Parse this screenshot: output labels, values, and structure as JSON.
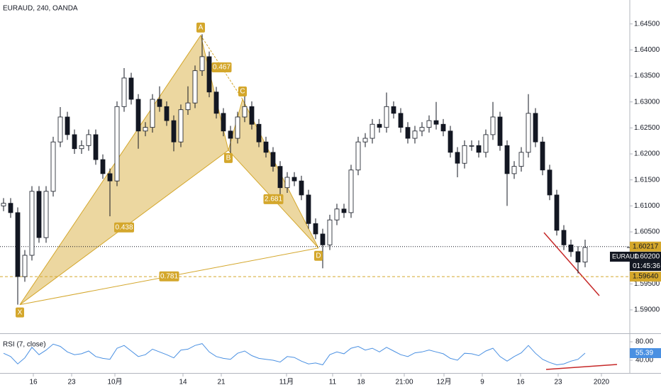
{
  "chart_data": [
    {
      "type": "candlestick",
      "title": "EURAUD, 240, OANDA",
      "symbol": "EURAUD",
      "candles": {
        "open": [
          1.61,
          1.6105,
          1.6087,
          1.5964,
          1.6005,
          1.6128,
          1.6039,
          1.6128,
          1.6223,
          1.6271,
          1.6237,
          1.621,
          1.6216,
          1.6237,
          1.6189,
          1.6162,
          1.6148,
          1.6291,
          1.6346,
          1.6305,
          1.6244,
          1.6251,
          1.6305,
          1.6291,
          1.6264,
          1.6223,
          1.6285,
          1.6298,
          1.636,
          1.6387,
          1.6319,
          1.6278,
          1.6244,
          1.623,
          1.6271,
          1.6291,
          1.6257,
          1.6223,
          1.6203,
          1.6176,
          1.6135,
          1.6155,
          1.6148,
          1.6121,
          1.6066,
          1.6046,
          1.6025,
          1.6073,
          1.6094,
          1.6087,
          1.6169,
          1.6223,
          1.623,
          1.6257,
          1.6251,
          1.6291,
          1.6278,
          1.6251,
          1.623,
          1.6244,
          1.6251,
          1.6264,
          1.6257,
          1.6244,
          1.6203,
          1.6182,
          1.6216,
          1.6216,
          1.6203,
          1.6237,
          1.6271,
          1.6216,
          1.6162,
          1.6176,
          1.6203,
          1.6278,
          1.6223,
          1.6169,
          1.6121,
          1.6053,
          1.6025,
          1.6012,
          1.5992
        ],
        "high": [
          1.6115,
          1.6115,
          1.6097,
          1.6015,
          1.6138,
          1.6138,
          1.6138,
          1.6233,
          1.629,
          1.6281,
          1.6247,
          1.6226,
          1.6247,
          1.6247,
          1.6199,
          1.6172,
          1.6301,
          1.6365,
          1.6356,
          1.6315,
          1.6261,
          1.6315,
          1.633,
          1.6301,
          1.6274,
          1.6295,
          1.633,
          1.637,
          1.643,
          1.6397,
          1.6329,
          1.6288,
          1.6254,
          1.6281,
          1.6315,
          1.6301,
          1.6267,
          1.6233,
          1.6213,
          1.6186,
          1.6165,
          1.6165,
          1.6158,
          1.6131,
          1.6076,
          1.6056,
          1.6083,
          1.6104,
          1.6104,
          1.6179,
          1.6233,
          1.624,
          1.6267,
          1.6267,
          1.6318,
          1.6301,
          1.6288,
          1.6261,
          1.6254,
          1.6261,
          1.6274,
          1.63,
          1.6267,
          1.6254,
          1.6213,
          1.6226,
          1.6226,
          1.6226,
          1.6247,
          1.63,
          1.6281,
          1.6226,
          1.6186,
          1.6213,
          1.6315,
          1.6288,
          1.6233,
          1.6179,
          1.6131,
          1.6063,
          1.6035,
          1.6022,
          1.6035
        ],
        "low": [
          1.609,
          1.6077,
          1.591,
          1.5954,
          1.5995,
          1.6029,
          1.6029,
          1.6118,
          1.6213,
          1.6227,
          1.62,
          1.62,
          1.6206,
          1.6179,
          1.6152,
          1.608,
          1.6138,
          1.6281,
          1.6295,
          1.621,
          1.6234,
          1.6241,
          1.6281,
          1.6254,
          1.6205,
          1.6213,
          1.6275,
          1.6288,
          1.635,
          1.6309,
          1.6268,
          1.6234,
          1.62,
          1.622,
          1.6261,
          1.6247,
          1.6213,
          1.6193,
          1.6166,
          1.6115,
          1.6125,
          1.6138,
          1.6111,
          1.6056,
          1.6036,
          1.598,
          1.6015,
          1.6063,
          1.6077,
          1.6077,
          1.6159,
          1.6213,
          1.622,
          1.6241,
          1.6241,
          1.6268,
          1.6241,
          1.622,
          1.622,
          1.6234,
          1.6241,
          1.6247,
          1.6234,
          1.6193,
          1.6155,
          1.6172,
          1.6206,
          1.6193,
          1.6193,
          1.6227,
          1.6206,
          1.61,
          1.6152,
          1.6166,
          1.6193,
          1.6213,
          1.6159,
          1.6111,
          1.6043,
          1.6015,
          1.6002,
          1.597,
          1.5982
        ],
        "close": [
          1.6105,
          1.6087,
          1.5964,
          1.6005,
          1.6128,
          1.6039,
          1.6128,
          1.6223,
          1.6271,
          1.6237,
          1.621,
          1.6216,
          1.6237,
          1.6189,
          1.6162,
          1.6148,
          1.6291,
          1.6346,
          1.6305,
          1.6244,
          1.6251,
          1.6305,
          1.6291,
          1.6264,
          1.6223,
          1.6285,
          1.6298,
          1.636,
          1.6387,
          1.6319,
          1.6278,
          1.6244,
          1.623,
          1.6271,
          1.6291,
          1.6257,
          1.6223,
          1.6203,
          1.6176,
          1.6135,
          1.6155,
          1.6148,
          1.6121,
          1.6066,
          1.6046,
          1.6025,
          1.6073,
          1.6094,
          1.6087,
          1.6169,
          1.6223,
          1.623,
          1.6257,
          1.6251,
          1.6291,
          1.6278,
          1.6251,
          1.623,
          1.6244,
          1.6251,
          1.6264,
          1.6257,
          1.6244,
          1.6203,
          1.6182,
          1.6216,
          1.6216,
          1.6203,
          1.6237,
          1.6271,
          1.6216,
          1.6162,
          1.6176,
          1.6203,
          1.6278,
          1.6223,
          1.6169,
          1.6121,
          1.6053,
          1.6025,
          1.6012,
          1.5992,
          1.602
        ]
      },
      "up_color": "#ffffff",
      "down_color": "#131722",
      "xlim": [
        -0.5,
        88.3
      ],
      "xticks": [
        {
          "value": 4.2,
          "label": "16"
        },
        {
          "value": 9.6,
          "label": "23"
        },
        {
          "value": 15.7,
          "label": "10月"
        },
        {
          "value": 25.3,
          "label": "14"
        },
        {
          "value": 30.7,
          "label": "21"
        },
        {
          "value": 39.9,
          "label": "11月"
        },
        {
          "value": 46.4,
          "label": "11"
        },
        {
          "value": 50.4,
          "label": "18"
        },
        {
          "value": 56.5,
          "label": "21:00"
        },
        {
          "value": 62.1,
          "label": "12月"
        },
        {
          "value": 67.5,
          "label": "9"
        },
        {
          "value": 72.9,
          "label": "16"
        },
        {
          "value": 78.2,
          "label": "23"
        },
        {
          "value": 84.3,
          "label": "2020"
        }
      ],
      "ylim": [
        1.5855,
        1.6496
      ],
      "yticks": [
        {
          "value": 1.59,
          "label": "1.59000"
        },
        {
          "value": 1.595,
          "label": "1.59500"
        },
        {
          "value": 1.605,
          "label": "1.60500"
        },
        {
          "value": 1.61,
          "label": "1.61000"
        },
        {
          "value": 1.615,
          "label": "1.61500"
        },
        {
          "value": 1.62,
          "label": "1.62000"
        },
        {
          "value": 1.625,
          "label": "1.62500"
        },
        {
          "value": 1.63,
          "label": "1.63000"
        },
        {
          "value": 1.635,
          "label": "1.63500"
        },
        {
          "value": 1.64,
          "label": "1.64000"
        },
        {
          "value": 1.645,
          "label": "1.64500"
        }
      ],
      "grid": false,
      "pattern": {
        "color": "#d4a72c",
        "points": [
          {
            "label": "X",
            "x": 2.3,
            "price": 1.591
          },
          {
            "label": "A",
            "x": 27.8,
            "price": 1.6428
          },
          {
            "label": "B",
            "x": 31.7,
            "price": 1.6207
          },
          {
            "label": "C",
            "x": 33.7,
            "price": 1.6305
          },
          {
            "label": "D",
            "x": 44.4,
            "price": 1.6019
          }
        ],
        "ratios": {
          "XB": 0.438,
          "AC": 0.467,
          "BD": 2.681,
          "XD": 0.781
        }
      },
      "hlines": [
        {
          "value": 1.60217,
          "label": "1.60217",
          "color": "#131722",
          "dash": "1 2"
        },
        {
          "value": 1.5964,
          "label": "1.59640",
          "color": "#d4a72c",
          "dash": "4 3"
        }
      ],
      "last_price": {
        "value": 1.602,
        "label": "1.60200"
      },
      "countdown": "01:45:36"
    },
    {
      "type": "line",
      "title": "RSI (7, close)",
      "color": "#4a90e2",
      "values": [
        55,
        48,
        32,
        45,
        68,
        52,
        62,
        75,
        70,
        58,
        52,
        54,
        60,
        48,
        44,
        42,
        66,
        72,
        60,
        48,
        52,
        64,
        58,
        52,
        45,
        62,
        64,
        72,
        76,
        58,
        48,
        44,
        42,
        55,
        60,
        50,
        44,
        42,
        40,
        36,
        48,
        46,
        38,
        32,
        34,
        30,
        52,
        58,
        54,
        66,
        70,
        62,
        66,
        58,
        68,
        60,
        52,
        48,
        56,
        58,
        62,
        58,
        54,
        44,
        40,
        55,
        54,
        50,
        60,
        66,
        48,
        38,
        48,
        56,
        72,
        55,
        42,
        35,
        30,
        32,
        38,
        42,
        55.39
      ],
      "ylim": [
        13.8,
        95.4
      ],
      "yticks": [
        {
          "value": 80,
          "label": "80.00"
        },
        {
          "value": 40,
          "label": "40.00"
        }
      ]
    }
  ]
}
